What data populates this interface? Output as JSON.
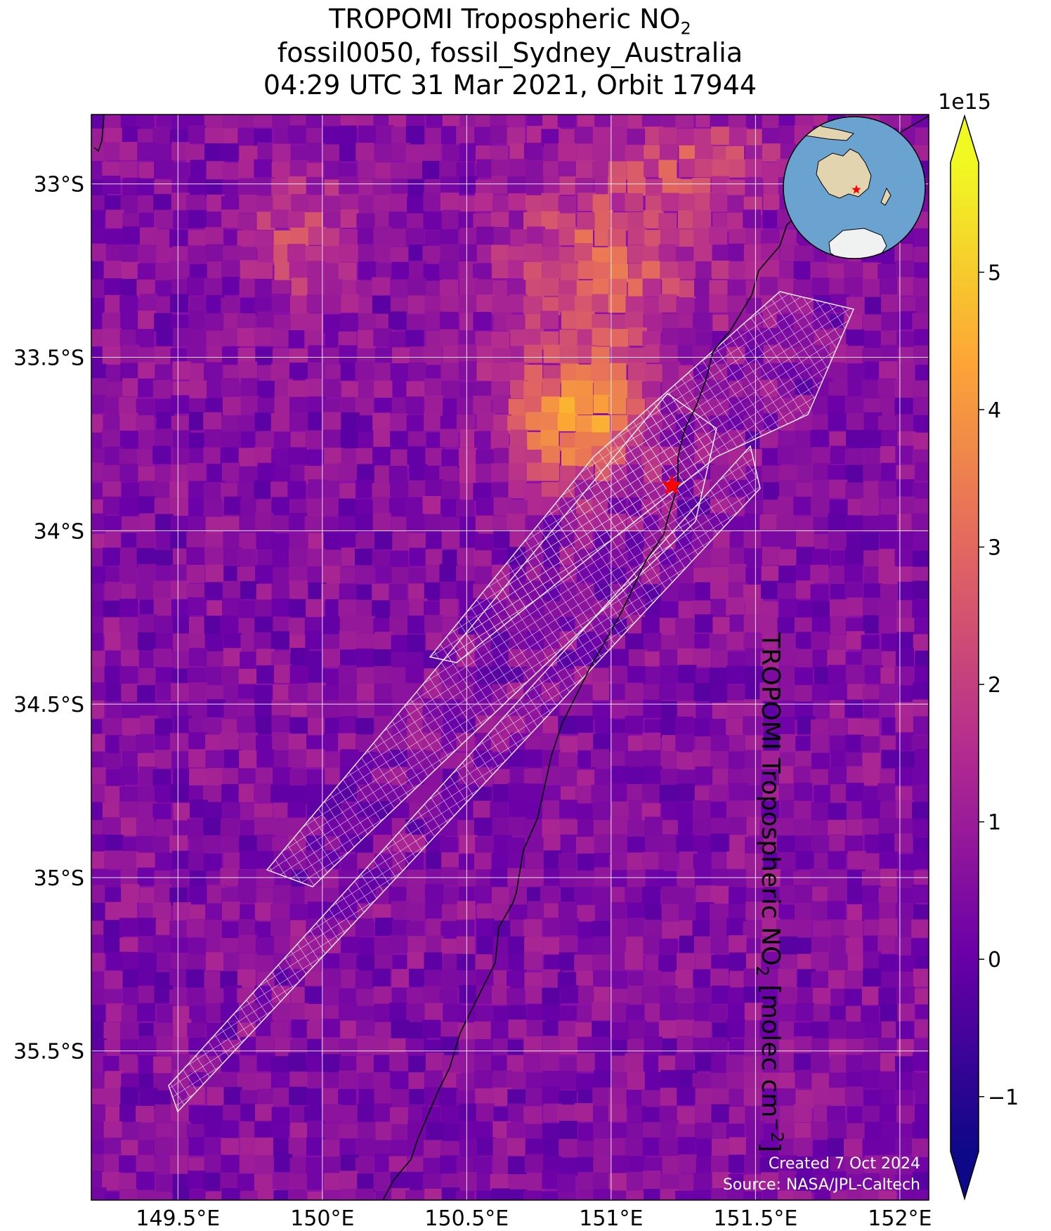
{
  "title": {
    "line1_prefix": "TROPOMI Tropospheric NO",
    "line1_sub": "2",
    "line2": "fossil0050, fossil_Sydney_Australia",
    "line3": "04:29 UTC 31 Mar 2021, Orbit 17944"
  },
  "map": {
    "lon_range": [
      149.2,
      152.1
    ],
    "lat_range": [
      -35.93,
      -32.8
    ],
    "lat_ticks": [
      {
        "value": -33.0,
        "label": "33°S"
      },
      {
        "value": -33.5,
        "label": "33.5°S"
      },
      {
        "value": -34.0,
        "label": "34°S"
      },
      {
        "value": -34.5,
        "label": "34.5°S"
      },
      {
        "value": -35.0,
        "label": "35°S"
      },
      {
        "value": -35.5,
        "label": "35.5°S"
      }
    ],
    "lon_ticks": [
      {
        "value": 149.5,
        "label": "149.5°E"
      },
      {
        "value": 150.0,
        "label": "150°E"
      },
      {
        "value": 150.5,
        "label": "150.5°E"
      },
      {
        "value": 151.0,
        "label": "151°E"
      },
      {
        "value": 151.5,
        "label": "151.5°E"
      },
      {
        "value": 152.0,
        "label": "152°E"
      }
    ],
    "target_marker": {
      "lon": 151.21,
      "lat": -33.87,
      "color": "#ff0000"
    },
    "background_color": "#8a10a8",
    "plume_color": "#f28f3c"
  },
  "colorbar": {
    "multiplier": "1e15",
    "label_prefix": "TROPOMI Tropospheric NO",
    "label_sub": "2",
    "label_mid": " [molec cm",
    "label_sup": "−2",
    "label_suffix": "]",
    "range": [
      -1.4,
      5.8
    ],
    "ticks": [
      {
        "value": -1,
        "label": "−1"
      },
      {
        "value": 0,
        "label": "0"
      },
      {
        "value": 1,
        "label": "1"
      },
      {
        "value": 2,
        "label": "2"
      },
      {
        "value": 3,
        "label": "3"
      },
      {
        "value": 4,
        "label": "4"
      },
      {
        "value": 5,
        "label": "5"
      }
    ],
    "colors": [
      "#0d0887",
      "#6a00a8",
      "#b12a90",
      "#e16462",
      "#fca636",
      "#f0f921"
    ]
  },
  "credits": {
    "line1": "Created 7 Oct 2024",
    "line2": "Source: NASA/JPL-Caltech"
  },
  "inset_globe": {
    "ocean_color": "#6aa3cf",
    "land_color": "#e3d4b0",
    "ice_color": "#f0f2f2",
    "marker_color": "#ff0000"
  }
}
